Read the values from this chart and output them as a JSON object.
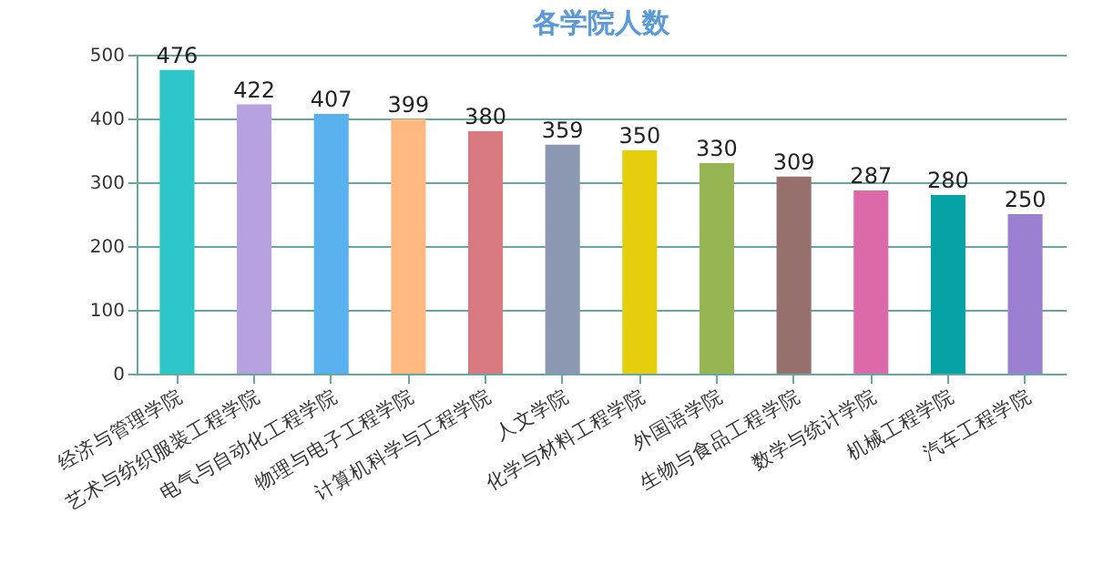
{
  "chart_data": {
    "type": "bar",
    "title": "各学院人数",
    "categories": [
      "经济与管理学院",
      "艺术与纺织服装工程学院",
      "电气与自动化工程学院",
      "物理与电子工程学院",
      "计算机科学与工程学院",
      "人文学院",
      "化学与材料工程学院",
      "外国语学院",
      "生物与食品工程学院",
      "数学与统计学院",
      "机械工程学院",
      "汽车工程学院"
    ],
    "values": [
      476,
      422,
      407,
      399,
      380,
      359,
      350,
      330,
      309,
      287,
      280,
      250
    ],
    "colors": [
      "#2ec7c9",
      "#b6a2de",
      "#5ab1ef",
      "#ffb980",
      "#d87a80",
      "#8d98b3",
      "#e5cf0d",
      "#97b552",
      "#95706d",
      "#dc69aa",
      "#07a2a4",
      "#9a7fd1"
    ],
    "ylim": [
      0,
      500
    ],
    "yticks": [
      0,
      100,
      200,
      300,
      400,
      500
    ],
    "grid": "y",
    "data_labels": true
  }
}
